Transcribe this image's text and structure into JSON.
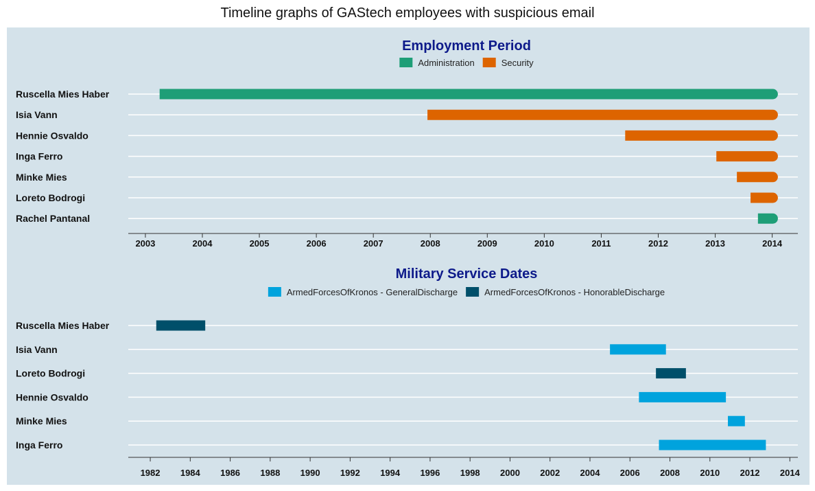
{
  "page_title": "Timeline graphs of GAStech employees with suspicious email",
  "colors": {
    "panel_bg": "#d4e2ea",
    "administration": "#1e9e77",
    "security": "#dd6400",
    "general_discharge": "#00a3dd",
    "honorable_discharge": "#004f6a"
  },
  "chart_data": [
    {
      "type": "bar",
      "orientation": "horizontal",
      "title": "Employment Period",
      "legend_position": "top",
      "legend": [
        {
          "name": "Administration",
          "color": "#1e9e77"
        },
        {
          "name": "Security",
          "color": "#dd6400"
        }
      ],
      "x_ticks": [
        "2003",
        "2004",
        "2005",
        "2006",
        "2007",
        "2008",
        "2009",
        "2010",
        "2011",
        "2012",
        "2013",
        "2014"
      ],
      "xlim": [
        2002.7,
        2014.45
      ],
      "grid": true,
      "rows": [
        {
          "label": "Ruscella Mies Haber",
          "start": 2003.25,
          "end": 2014.1,
          "category": "Administration"
        },
        {
          "label": "Isia Vann",
          "start": 2007.95,
          "end": 2014.1,
          "category": "Security"
        },
        {
          "label": "Hennie Osvaldo",
          "start": 2011.42,
          "end": 2014.1,
          "category": "Security"
        },
        {
          "label": "Inga Ferro",
          "start": 2013.02,
          "end": 2014.1,
          "category": "Security"
        },
        {
          "label": "Minke Mies",
          "start": 2013.38,
          "end": 2014.1,
          "category": "Security"
        },
        {
          "label": "Loreto Bodrogi",
          "start": 2013.62,
          "end": 2014.1,
          "category": "Security"
        },
        {
          "label": "Rachel Pantanal",
          "start": 2013.75,
          "end": 2014.1,
          "category": "Administration"
        }
      ]
    },
    {
      "type": "bar",
      "orientation": "horizontal",
      "title": "Military Service Dates",
      "legend_position": "top",
      "legend": [
        {
          "name": "ArmedForcesOfKronos - GeneralDischarge",
          "color": "#00a3dd"
        },
        {
          "name": "ArmedForcesOfKronos - HonorableDischarge",
          "color": "#004f6a"
        }
      ],
      "x_ticks": [
        "1982",
        "1984",
        "1986",
        "1988",
        "1990",
        "1992",
        "1994",
        "1996",
        "1998",
        "2000",
        "2002",
        "2004",
        "2006",
        "2008",
        "2010",
        "2012",
        "2014"
      ],
      "xlim": [
        1980.9,
        2014.4
      ],
      "grid": true,
      "rows": [
        {
          "label": "Ruscella Mies Haber",
          "start": 1982.3,
          "end": 1984.75,
          "category": "ArmedForcesOfKronos - HonorableDischarge"
        },
        {
          "label": "Isia Vann",
          "start": 2005.0,
          "end": 2007.8,
          "category": "ArmedForcesOfKronos - GeneralDischarge"
        },
        {
          "label": "Loreto Bodrogi",
          "start": 2007.3,
          "end": 2008.8,
          "category": "ArmedForcesOfKronos - HonorableDischarge"
        },
        {
          "label": "Hennie Osvaldo",
          "start": 2006.45,
          "end": 2010.8,
          "category": "ArmedForcesOfKronos - GeneralDischarge"
        },
        {
          "label": "Minke Mies",
          "start": 2010.9,
          "end": 2011.75,
          "category": "ArmedForcesOfKronos - GeneralDischarge"
        },
        {
          "label": "Inga Ferro",
          "start": 2007.45,
          "end": 2012.8,
          "category": "ArmedForcesOfKronos - GeneralDischarge"
        }
      ]
    }
  ]
}
